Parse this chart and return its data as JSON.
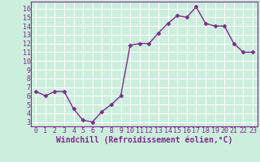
{
  "x": [
    0,
    1,
    2,
    3,
    4,
    5,
    6,
    7,
    8,
    9,
    10,
    11,
    12,
    13,
    14,
    15,
    16,
    17,
    18,
    19,
    20,
    21,
    22,
    23
  ],
  "y": [
    6.5,
    6.0,
    6.5,
    6.5,
    4.5,
    3.2,
    3.0,
    4.2,
    5.0,
    6.0,
    11.8,
    12.0,
    12.0,
    13.2,
    14.3,
    15.2,
    15.0,
    16.2,
    14.3,
    14.0,
    14.0,
    12.0,
    11.0,
    11.0
  ],
  "color": "#7b2d8b",
  "bg_color": "#cceedd",
  "grid_color": "#ffffff",
  "xlabel": "Windchill (Refroidissement éolien,°C)",
  "ylim": [
    2.5,
    16.8
  ],
  "xlim": [
    -0.5,
    23.5
  ],
  "yticks": [
    3,
    4,
    5,
    6,
    7,
    8,
    9,
    10,
    11,
    12,
    13,
    14,
    15,
    16
  ],
  "xticks": [
    0,
    1,
    2,
    3,
    4,
    5,
    6,
    7,
    8,
    9,
    10,
    11,
    12,
    13,
    14,
    15,
    16,
    17,
    18,
    19,
    20,
    21,
    22,
    23
  ],
  "marker": "D",
  "markersize": 2.5,
  "linewidth": 1.0,
  "xlabel_fontsize": 7,
  "tick_fontsize": 6,
  "label_color": "#7b2d8b"
}
